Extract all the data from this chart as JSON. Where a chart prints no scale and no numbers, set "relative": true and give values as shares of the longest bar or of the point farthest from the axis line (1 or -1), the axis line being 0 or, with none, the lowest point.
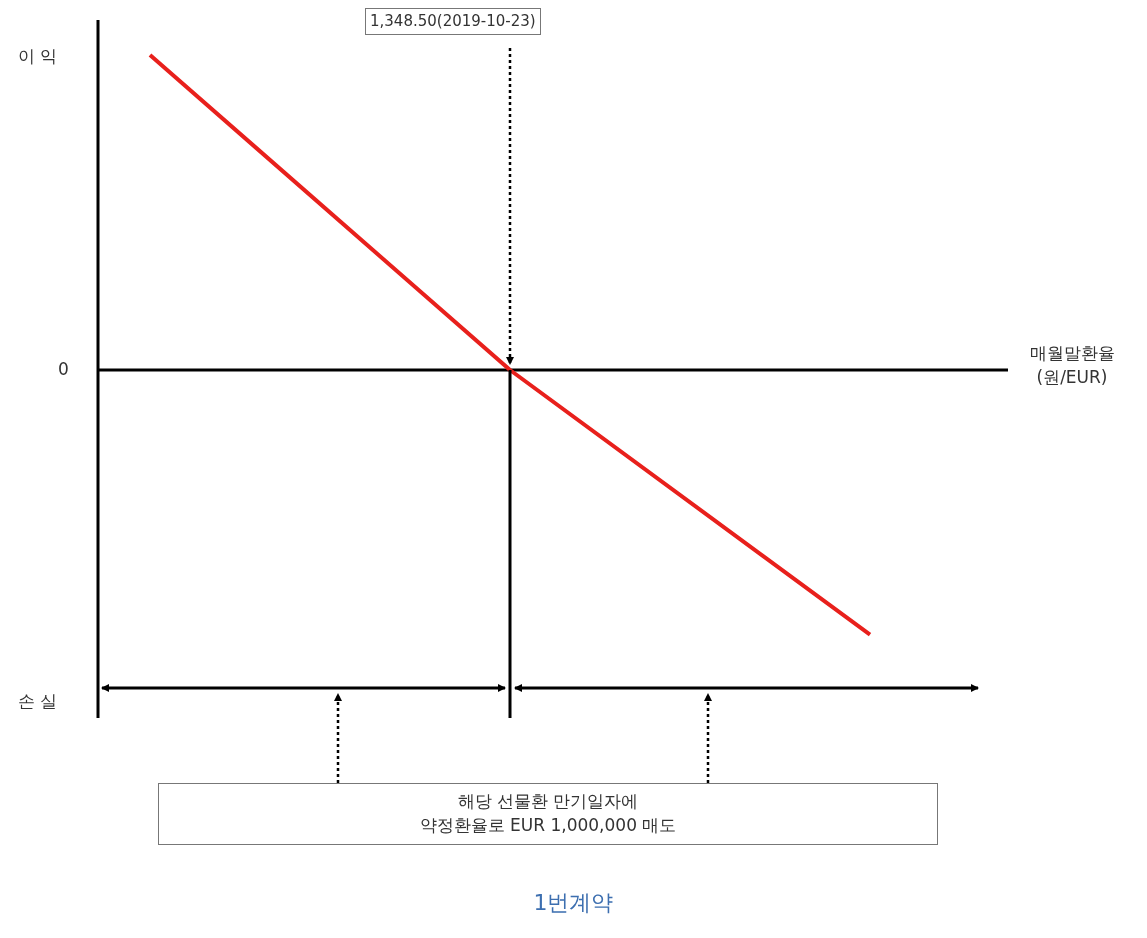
{
  "chart_data": {
    "type": "line",
    "relative": true,
    "title": "1번계약",
    "xlabel": "매월말환율\n(원/EUR)",
    "categories": [
      null,
      null,
      null
    ],
    "series": [
      {
        "color": "#e8201c",
        "values": [
          1,
          0,
          -0.84
        ]
      }
    ],
    "annotations": [
      "이 익",
      "0",
      "손 실",
      "1,348.50(2019-10-23)",
      "해당 선물환 만기일자에\n약정환율로 EUR 1,000,000 매도"
    ],
    "legend": false
  }
}
